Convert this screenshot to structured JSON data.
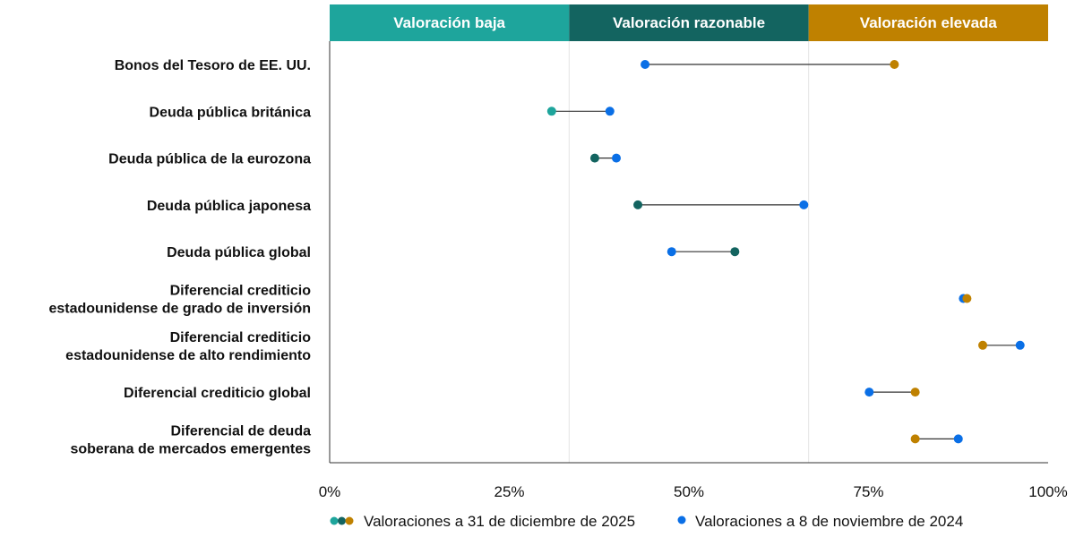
{
  "chart_data": {
    "type": "dumbbell",
    "bands": [
      {
        "label": "Valoración baja",
        "from": 0,
        "to": 33.33,
        "color": "#1ea59c"
      },
      {
        "label": "Valoración razonable",
        "from": 33.33,
        "to": 66.67,
        "color": "#136460"
      },
      {
        "label": "Valoración elevada",
        "from": 66.67,
        "to": 100,
        "color": "#bf8100"
      }
    ],
    "categories": [
      [
        "Bonos del Tesoro de EE. UU."
      ],
      [
        "Deuda pública británica"
      ],
      [
        "Deuda pública de la eurozona"
      ],
      [
        "Deuda pública japonesa"
      ],
      [
        "Deuda pública global"
      ],
      [
        "Diferencial crediticio",
        "estadounidense de grado de inversión"
      ],
      [
        "Diferencial crediticio",
        "estadounidense de alto rendimiento"
      ],
      [
        "Diferencial crediticio global"
      ],
      [
        "Diferencial de deuda",
        "soberana de mercados emergentes"
      ]
    ],
    "series": [
      {
        "name": "Valoraciones a 31 de diciembre de 2025",
        "values": [
          78.6,
          30.9,
          36.9,
          42.9,
          56.4,
          88.7,
          90.9,
          81.5,
          81.5
        ]
      },
      {
        "name": "Valoraciones a 8 de noviembre de 2024",
        "values": [
          43.9,
          39.0,
          39.9,
          66.0,
          47.6,
          88.2,
          96.1,
          75.1,
          87.5
        ],
        "color": "#0a6fe6"
      }
    ],
    "xlim": [
      0,
      100
    ],
    "xticks": [
      "0%",
      "25%",
      "50%",
      "75%",
      "100%"
    ],
    "legend_position": "bottom",
    "grid": false
  }
}
